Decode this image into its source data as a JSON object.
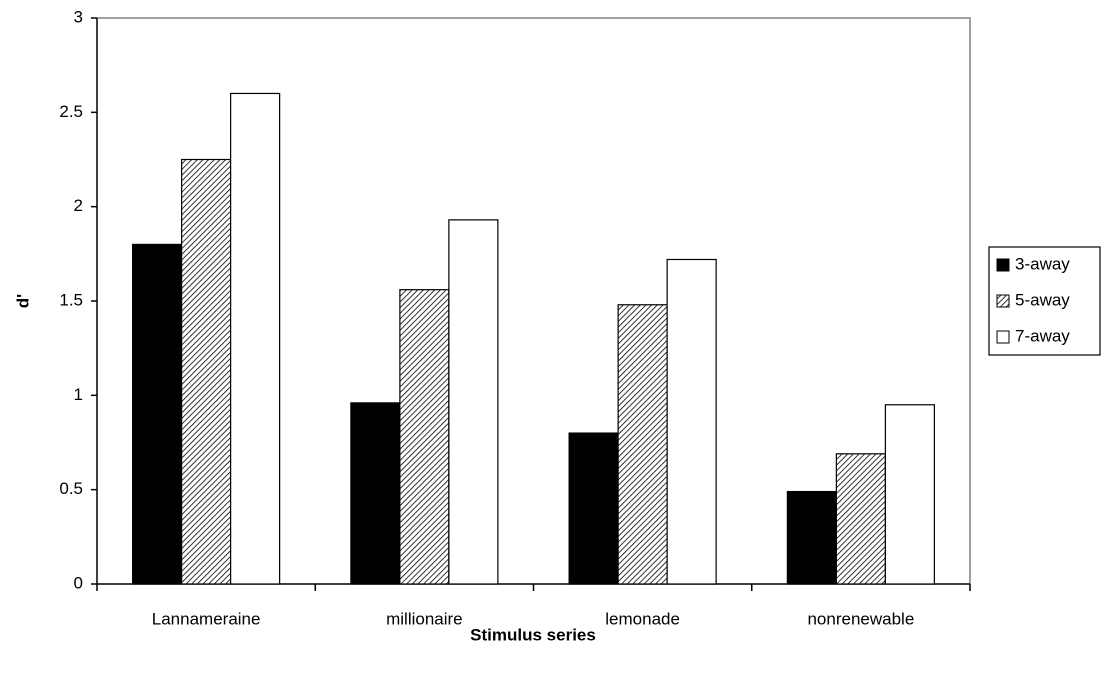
{
  "chart_data": {
    "type": "bar",
    "x_label": "Stimulus series",
    "y_label": "d'",
    "categories": [
      "Lannameraine",
      "millionaire",
      "lemonade",
      "nonrenewable"
    ],
    "series": [
      {
        "name": "3-away",
        "color": "#000000",
        "fill": "solid",
        "values": [
          1.8,
          0.96,
          0.8,
          0.49
        ]
      },
      {
        "name": "5-away",
        "color": "#000000",
        "fill": "hatch",
        "values": [
          2.25,
          1.56,
          1.48,
          0.69
        ]
      },
      {
        "name": "7-away",
        "color": "#ffffff",
        "fill": "solid",
        "values": [
          2.6,
          1.93,
          1.72,
          0.95
        ]
      }
    ],
    "ylim": [
      0,
      3
    ],
    "yticks": [
      0,
      0.5,
      1,
      1.5,
      2,
      2.5,
      3
    ],
    "grid": false,
    "legend": "right"
  }
}
